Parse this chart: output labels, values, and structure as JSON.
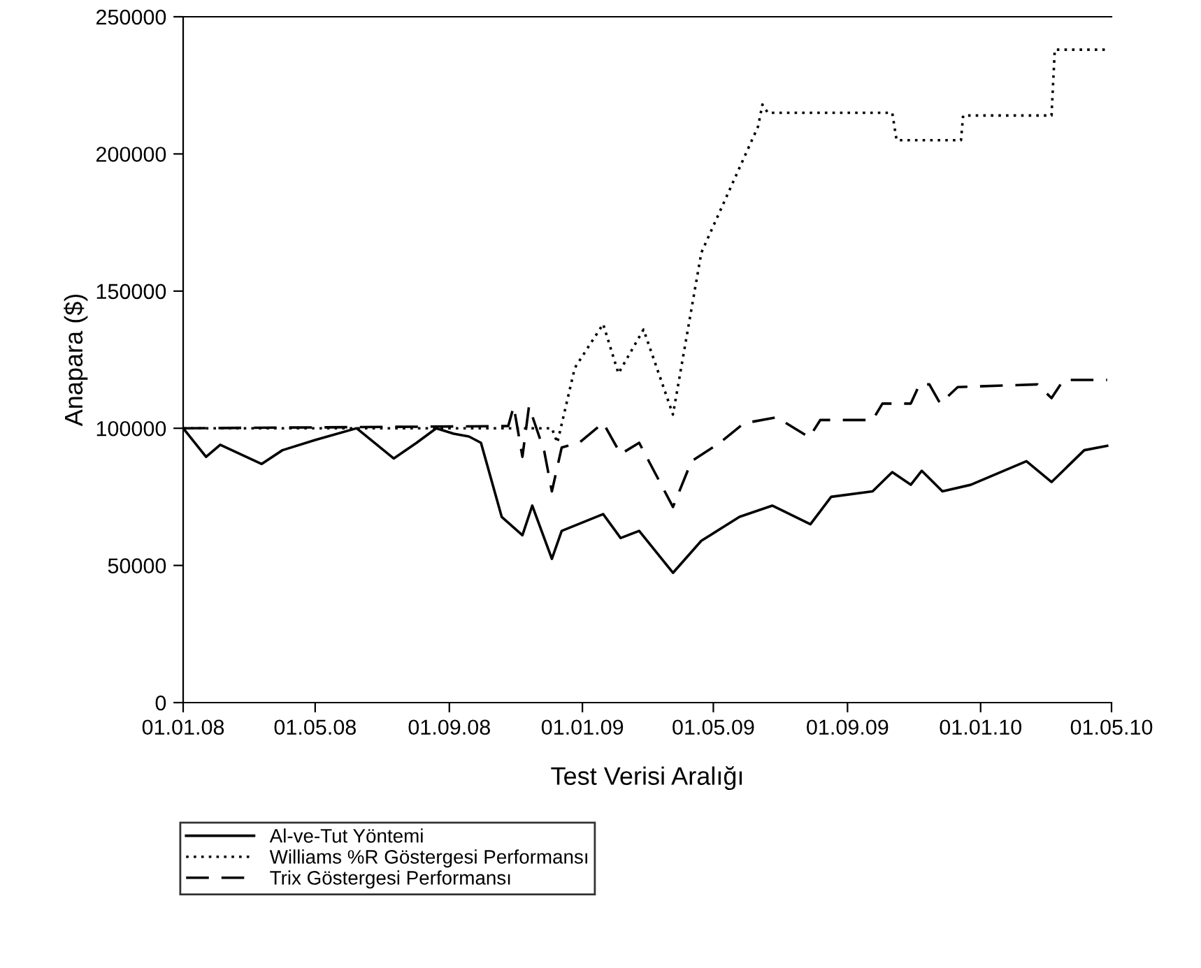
{
  "chart_data": {
    "type": "line",
    "xlabel": "Test Verisi Aralığı",
    "ylabel": "Anapara ($)",
    "xlim": [
      "2008-01-01",
      "2010-05-01"
    ],
    "ylim": [
      0,
      250000
    ],
    "xticks": [
      {
        "value": "2008-01-01",
        "label": "01.01.08"
      },
      {
        "value": "2008-05-01",
        "label": "01.05.08"
      },
      {
        "value": "2008-09-01",
        "label": "01.09.08"
      },
      {
        "value": "2009-01-01",
        "label": "01.01.09"
      },
      {
        "value": "2009-05-01",
        "label": "01.05.09"
      },
      {
        "value": "2009-09-01",
        "label": "01.09.09"
      },
      {
        "value": "2010-01-01",
        "label": "01.01.10"
      },
      {
        "value": "2010-05-01",
        "label": "01.05.10"
      }
    ],
    "yticks": [
      0,
      50000,
      100000,
      150000,
      200000,
      250000
    ],
    "grid": false,
    "legend": "bottom",
    "series": [
      {
        "name": "Al-ve-Tut Yöntemi",
        "color": "#000000",
        "line_style": "solid",
        "x": [
          "2008-01-01",
          "2008-01-22",
          "2008-02-04",
          "2008-03-13",
          "2008-04-01",
          "2008-05-01",
          "2008-06-08",
          "2008-07-12",
          "2008-08-02",
          "2008-08-20",
          "2008-09-05",
          "2008-09-19",
          "2008-09-30",
          "2008-10-19",
          "2008-11-07",
          "2008-11-16",
          "2008-12-04",
          "2008-12-13",
          "2009-01-20",
          "2009-02-05",
          "2009-02-22",
          "2009-03-25",
          "2009-04-20",
          "2009-05-25",
          "2009-06-24",
          "2009-07-29",
          "2009-08-17",
          "2009-09-24",
          "2009-10-12",
          "2009-10-29",
          "2009-11-08",
          "2009-11-27",
          "2009-12-23",
          "2010-02-12",
          "2010-03-07",
          "2010-04-06",
          "2010-04-27"
        ],
        "values": [
          100000,
          89600,
          94000,
          87000,
          92000,
          95700,
          100000,
          89000,
          94700,
          100000,
          98000,
          97000,
          94700,
          67700,
          61000,
          71800,
          52400,
          62600,
          68700,
          60000,
          62600,
          47300,
          59000,
          67700,
          71800,
          65000,
          75000,
          77000,
          84000,
          79400,
          84500,
          77000,
          79400,
          88000,
          80400,
          92000,
          93600
        ]
      },
      {
        "name": "Williams %R Göstergesi Performansı",
        "color": "#000000",
        "line_style": "dotted",
        "x": [
          "2008-01-01",
          "2008-12-04",
          "2008-12-09",
          "2008-12-25",
          "2009-01-20",
          "2009-02-03",
          "2009-02-26",
          "2009-03-25",
          "2009-04-20",
          "2009-06-11",
          "2009-06-15",
          "2009-06-20",
          "2009-10-12",
          "2009-10-16",
          "2009-12-14",
          "2009-12-16",
          "2010-03-07",
          "2010-03-10",
          "2010-04-27"
        ],
        "values": [
          100000,
          100000,
          94700,
          122000,
          138000,
          120000,
          136000,
          105000,
          164000,
          210000,
          218000,
          215000,
          215000,
          205000,
          205000,
          214000,
          214000,
          238000,
          238000
        ]
      },
      {
        "name": "Trix Göstergesi Performansı",
        "color": "#000000",
        "line_style": "dashed",
        "x": [
          "2008-01-01",
          "2008-10-25",
          "2008-10-30",
          "2008-11-07",
          "2008-11-13",
          "2008-11-27",
          "2008-12-04",
          "2008-12-13",
          "2008-12-29",
          "2009-01-20",
          "2009-02-05",
          "2009-02-22",
          "2009-03-25",
          "2009-04-11",
          "2009-05-07",
          "2009-05-29",
          "2009-06-28",
          "2009-07-28",
          "2009-08-07",
          "2009-09-24",
          "2009-10-03",
          "2009-10-29",
          "2009-11-06",
          "2009-11-15",
          "2009-11-25",
          "2009-12-11",
          "2010-02-22",
          "2010-03-07",
          "2010-03-18",
          "2010-04-27"
        ],
        "values": [
          100000,
          100800,
          108000,
          89600,
          108000,
          91600,
          77000,
          93000,
          94700,
          102000,
          90600,
          94700,
          71300,
          88000,
          94700,
          101800,
          104000,
          96700,
          103000,
          103000,
          109000,
          109000,
          116000,
          116000,
          109000,
          115000,
          116000,
          111000,
          117600,
          117600
        ]
      }
    ]
  }
}
